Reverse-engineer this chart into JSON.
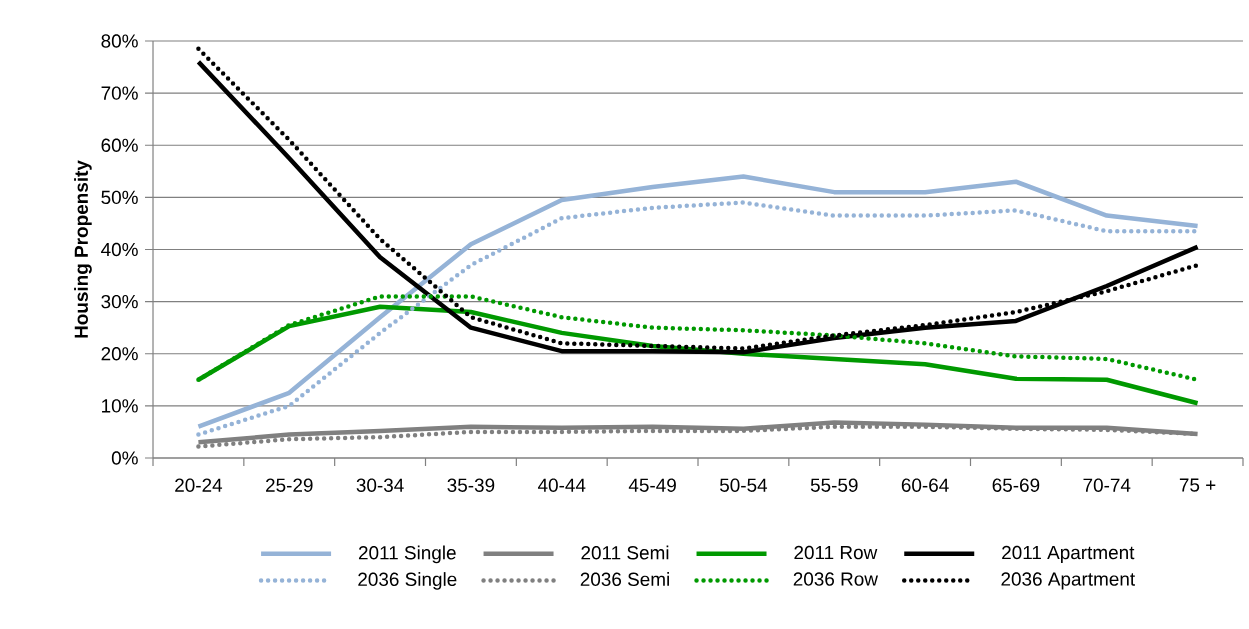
{
  "chart_data": {
    "type": "line",
    "ylabel": "Housing Propensity",
    "categories": [
      "20-24",
      "25-29",
      "30-34",
      "35-39",
      "40-44",
      "45-49",
      "50-54",
      "55-59",
      "60-64",
      "65-69",
      "70-74",
      "75 +"
    ],
    "series": [
      {
        "name": "2011 Single",
        "color": "#95b3d7",
        "line_style": "solid",
        "values": [
          6,
          12.5,
          27,
          41,
          49.5,
          52,
          54,
          51,
          51,
          53,
          46.5,
          44.5
        ]
      },
      {
        "name": "2011 Semi",
        "color": "#808080",
        "line_style": "solid",
        "values": [
          3,
          4.5,
          5.2,
          6,
          5.8,
          6,
          5.6,
          6.8,
          6.4,
          5.8,
          5.8,
          4.6
        ]
      },
      {
        "name": "2011 Row",
        "color": "#009900",
        "line_style": "solid",
        "values": [
          15,
          25.3,
          29,
          28,
          24,
          21.5,
          20,
          19,
          18,
          15.2,
          15,
          10.5
        ]
      },
      {
        "name": "2011 Apartment",
        "color": "#000000",
        "line_style": "solid",
        "values": [
          76,
          57.5,
          38.5,
          25,
          20.5,
          20.5,
          20.3,
          23,
          25,
          26.3,
          33,
          40.5
        ]
      },
      {
        "name": "2036 Single",
        "color": "#95b3d7",
        "line_style": "dotted",
        "values": [
          4.5,
          10,
          24,
          37,
          46,
          48,
          49,
          46.5,
          46.5,
          47.5,
          43.5,
          43.5
        ]
      },
      {
        "name": "2036 Semi",
        "color": "#808080",
        "line_style": "dotted",
        "values": [
          2.2,
          3.6,
          4,
          5,
          5,
          5.2,
          5.2,
          6,
          6,
          5.6,
          5.4,
          4.6
        ]
      },
      {
        "name": "2036 Row",
        "color": "#009900",
        "line_style": "dotted",
        "values": [
          15,
          25.5,
          31,
          31,
          27,
          25,
          24.5,
          23.5,
          22,
          19.5,
          19,
          15
        ]
      },
      {
        "name": "2036 Apartment",
        "color": "#000000",
        "line_style": "dotted",
        "values": [
          78.5,
          61,
          42,
          27,
          22,
          21.5,
          21,
          23.5,
          25.5,
          28,
          32,
          37
        ]
      }
    ],
    "ylim": [
      0,
      80
    ],
    "yticks": [
      {
        "value": 0,
        "label": "0%"
      },
      {
        "value": 10,
        "label": "10%"
      },
      {
        "value": 20,
        "label": "20%"
      },
      {
        "value": 30,
        "label": "30%"
      },
      {
        "value": 40,
        "label": "40%"
      },
      {
        "value": 50,
        "label": "50%"
      },
      {
        "value": 60,
        "label": "60%"
      },
      {
        "value": 70,
        "label": "70%"
      },
      {
        "value": 80,
        "label": "80%"
      }
    ],
    "grid": "y",
    "legend": "bottom",
    "marker": "none"
  }
}
